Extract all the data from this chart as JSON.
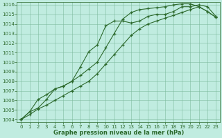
{
  "x": [
    0,
    1,
    2,
    3,
    4,
    5,
    6,
    7,
    8,
    9,
    10,
    11,
    12,
    13,
    14,
    15,
    16,
    17,
    18,
    19,
    20,
    21,
    22,
    23
  ],
  "line1": [
    1004,
    1004.8,
    1005.2,
    1006.1,
    1007.2,
    1007.5,
    1008.0,
    1009.5,
    1011.1,
    1011.8,
    1013.8,
    1014.3,
    1014.3,
    1014.1,
    1014.3,
    1014.8,
    1015.0,
    1015.0,
    1015.3,
    1015.8,
    1015.8,
    1016.0,
    1015.8,
    1014.8
  ],
  "line2": [
    1004,
    1004.8,
    1006.1,
    1006.6,
    1007.2,
    1007.5,
    1008.0,
    1008.6,
    1009.3,
    1010.0,
    1011.5,
    1013.0,
    1014.5,
    1015.2,
    1015.5,
    1015.6,
    1015.7,
    1015.8,
    1016.0,
    1016.1,
    1016.1,
    1015.8,
    1015.3,
    1014.7
  ],
  "line3": [
    1004,
    1004.5,
    1005.1,
    1005.5,
    1006.0,
    1006.5,
    1007.0,
    1007.5,
    1008.0,
    1008.8,
    1009.8,
    1010.8,
    1011.8,
    1012.8,
    1013.5,
    1014.0,
    1014.3,
    1014.6,
    1014.9,
    1015.2,
    1015.5,
    1015.8,
    1015.3,
    1014.7
  ],
  "line_color": "#2d6a2d",
  "bg_color": "#c0ece0",
  "grid_color": "#7ab89a",
  "xlabel": "Graphe pression niveau de la mer (hPa)",
  "ylim": [
    1004,
    1016
  ],
  "xlim": [
    0,
    23
  ],
  "yticks": [
    1004,
    1005,
    1006,
    1007,
    1008,
    1009,
    1010,
    1011,
    1012,
    1013,
    1014,
    1015,
    1016
  ],
  "xticks": [
    0,
    1,
    2,
    3,
    4,
    5,
    6,
    7,
    8,
    9,
    10,
    11,
    12,
    13,
    14,
    15,
    16,
    17,
    18,
    19,
    20,
    21,
    22,
    23
  ],
  "tick_fontsize": 5.0,
  "xlabel_fontsize": 6.0
}
